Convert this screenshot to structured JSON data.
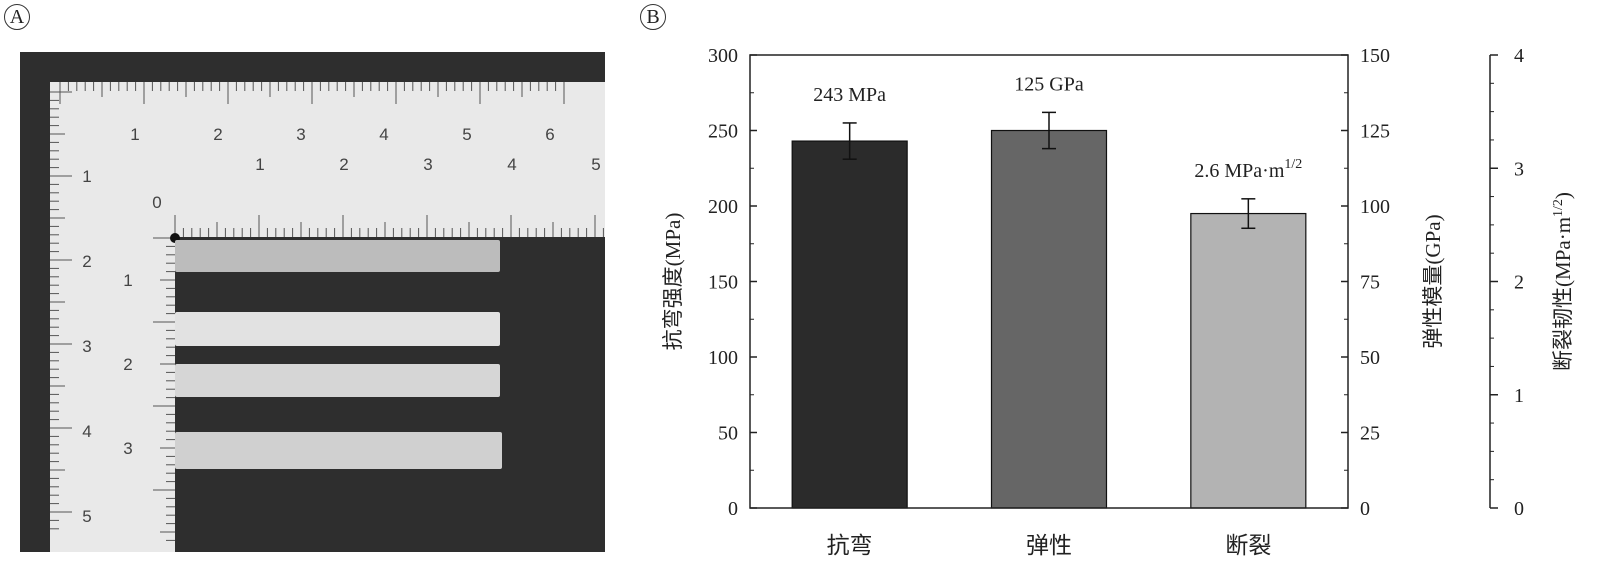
{
  "panels": {
    "a_label": "A",
    "b_label": "B"
  },
  "photo": {
    "ruler_top_marks": [
      "1",
      "2",
      "3",
      "4",
      "5",
      "6"
    ],
    "ruler_inner_marks": [
      "1",
      "2",
      "3",
      "4",
      "5"
    ],
    "ruler_left_marks": [
      "1",
      "2",
      "3",
      "4",
      "5"
    ],
    "ruler_inner_left_marks": [
      "1",
      "2",
      "3"
    ],
    "origin_mark": "0"
  },
  "chart_data": {
    "type": "bar",
    "categories": [
      "抗弯",
      "弹性",
      "断裂"
    ],
    "values": [
      243,
      125,
      2.6
    ],
    "errors": [
      12,
      6,
      0.13
    ],
    "units": [
      "MPa",
      "GPa",
      "MPa·m^1/2"
    ],
    "data_labels": [
      "243 MPa",
      "125 GPa",
      "2.6 MPa·m"
    ],
    "data_label_superscript": "1/2",
    "bar_colors": [
      "#2b2b2b",
      "#666666",
      "#b3b3b3"
    ],
    "axes": [
      {
        "side": "left",
        "label": "抗弯强度(MPa)",
        "ylim": [
          0,
          300
        ],
        "ticks": [
          "0",
          "50",
          "100",
          "150",
          "200",
          "250",
          "300"
        ]
      },
      {
        "side": "right",
        "label": "弹性模量(GPa)",
        "ylim": [
          0,
          150
        ],
        "ticks": [
          "0",
          "25",
          "50",
          "75",
          "100",
          "125",
          "150"
        ]
      },
      {
        "side": "right-outer",
        "label": "断裂韧性(MPa·m",
        "label_superscript": "1/2",
        "label_end": ")",
        "ylim": [
          0,
          4
        ],
        "ticks": [
          "0",
          "1",
          "2",
          "3",
          "4"
        ]
      }
    ]
  }
}
